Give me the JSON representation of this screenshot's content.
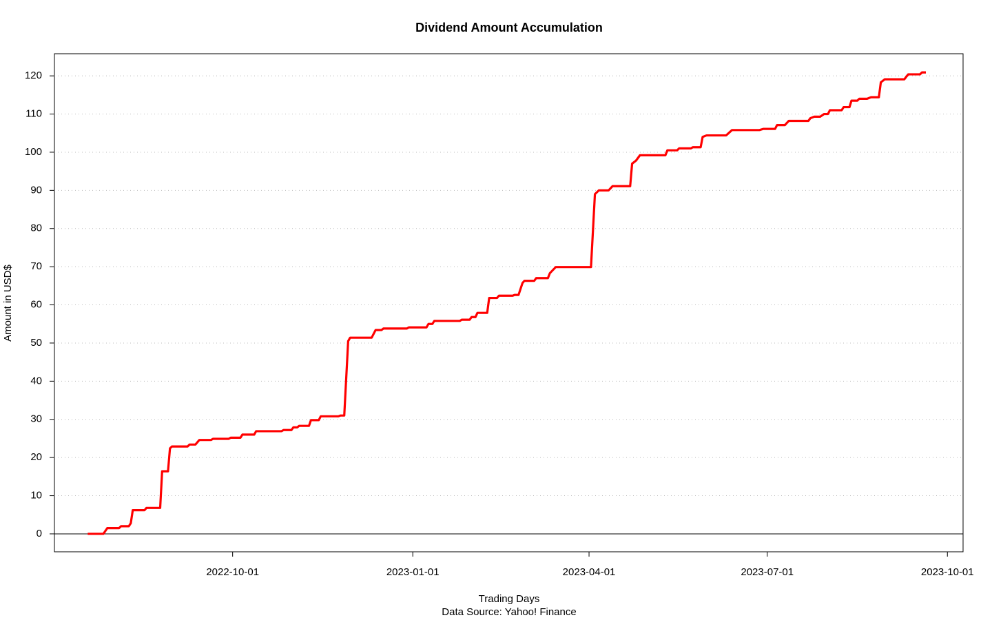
{
  "chart_data": {
    "type": "line",
    "title": "Dividend Amount Accumulation",
    "xlabel": "Trading Days",
    "caption": "Data Source: Yahoo! Finance",
    "ylabel": "Amount in USD$",
    "x": [
      "2022-07-19",
      "2022-07-27",
      "2022-07-29",
      "2022-08-04",
      "2022-08-05",
      "2022-08-09",
      "2022-08-10",
      "2022-08-11",
      "2022-08-17",
      "2022-08-18",
      "2022-08-25",
      "2022-08-26",
      "2022-08-29",
      "2022-08-30",
      "2022-08-31",
      "2022-09-08",
      "2022-09-09",
      "2022-09-12",
      "2022-09-14",
      "2022-09-20",
      "2022-09-21",
      "2022-09-29",
      "2022-09-30",
      "2022-10-05",
      "2022-10-06",
      "2022-10-12",
      "2022-10-13",
      "2022-10-26",
      "2022-10-27",
      "2022-10-31",
      "2022-11-01",
      "2022-11-03",
      "2022-11-04",
      "2022-11-09",
      "2022-11-10",
      "2022-11-14",
      "2022-11-15",
      "2022-11-24",
      "2022-11-25",
      "2022-11-27",
      "2022-11-29",
      "2022-11-30",
      "2022-12-11",
      "2022-12-13",
      "2022-12-16",
      "2022-12-17",
      "2022-12-29",
      "2022-12-30",
      "2023-01-08",
      "2023-01-09",
      "2023-01-11",
      "2023-01-12",
      "2023-01-25",
      "2023-01-26",
      "2023-01-30",
      "2023-01-31",
      "2023-02-02",
      "2023-02-03",
      "2023-02-08",
      "2023-02-09",
      "2023-02-13",
      "2023-02-14",
      "2023-02-21",
      "2023-02-22",
      "2023-02-24",
      "2023-02-26",
      "2023-02-27",
      "2023-03-04",
      "2023-03-05",
      "2023-03-11",
      "2023-03-12",
      "2023-03-15",
      "2023-04-02",
      "2023-04-04",
      "2023-04-06",
      "2023-04-11",
      "2023-04-13",
      "2023-04-22",
      "2023-04-23",
      "2023-04-25",
      "2023-04-27",
      "2023-05-10",
      "2023-05-11",
      "2023-05-16",
      "2023-05-17",
      "2023-05-23",
      "2023-05-24",
      "2023-05-28",
      "2023-05-29",
      "2023-05-31",
      "2023-06-10",
      "2023-06-13",
      "2023-06-27",
      "2023-06-29",
      "2023-07-05",
      "2023-07-06",
      "2023-07-10",
      "2023-07-12",
      "2023-07-22",
      "2023-07-23",
      "2023-07-25",
      "2023-07-28",
      "2023-07-30",
      "2023-08-01",
      "2023-08-02",
      "2023-08-08",
      "2023-08-09",
      "2023-08-12",
      "2023-08-13",
      "2023-08-16",
      "2023-08-17",
      "2023-08-21",
      "2023-08-23",
      "2023-08-27",
      "2023-08-28",
      "2023-08-30",
      "2023-09-09",
      "2023-09-11",
      "2023-09-17",
      "2023-09-18",
      "2023-09-20"
    ],
    "series": [
      {
        "name": "Dividend Amount",
        "color": "#ff0000",
        "values": [
          0,
          0,
          1.5,
          1.5,
          2.0,
          2.0,
          2.8,
          6.2,
          6.2,
          6.8,
          6.8,
          16.4,
          16.4,
          22.4,
          22.9,
          22.9,
          23.4,
          23.4,
          24.6,
          24.6,
          24.9,
          24.9,
          25.2,
          25.2,
          26.0,
          26.0,
          26.9,
          26.9,
          27.2,
          27.2,
          27.9,
          27.9,
          28.3,
          28.3,
          29.8,
          29.8,
          30.8,
          30.8,
          31.0,
          31.0,
          50.5,
          51.4,
          51.4,
          53.4,
          53.4,
          53.8,
          53.8,
          54.1,
          54.1,
          55.0,
          55.0,
          55.8,
          55.8,
          56.1,
          56.1,
          56.8,
          56.8,
          57.9,
          57.9,
          61.8,
          61.8,
          62.4,
          62.4,
          62.6,
          62.6,
          65.7,
          66.3,
          66.3,
          67.0,
          67.0,
          68.3,
          69.9,
          69.9,
          89.0,
          90.0,
          90.0,
          91.1,
          91.1,
          97.0,
          97.8,
          99.2,
          99.2,
          100.5,
          100.5,
          101.0,
          101.0,
          101.3,
          101.3,
          104.0,
          104.4,
          104.4,
          105.8,
          105.8,
          106.1,
          106.1,
          107.1,
          107.1,
          108.2,
          108.2,
          108.9,
          109.3,
          109.3,
          110.0,
          110.0,
          111.0,
          111.0,
          111.8,
          111.8,
          113.5,
          113.5,
          114.0,
          114.0,
          114.4,
          114.4,
          118.3,
          119.1,
          119.1,
          120.4,
          120.4,
          120.9,
          120.9
        ]
      }
    ],
    "xlim": [
      "2022-07-02",
      "2023-10-09"
    ],
    "xticks": [
      "2022-10-01",
      "2023-01-01",
      "2023-04-01",
      "2023-07-01",
      "2023-10-01"
    ],
    "ylim": [
      -4.7,
      125.8
    ],
    "yticks": [
      0,
      10,
      20,
      30,
      40,
      50,
      60,
      70,
      80,
      90,
      100,
      110,
      120
    ],
    "grid": true,
    "hline": 0
  }
}
